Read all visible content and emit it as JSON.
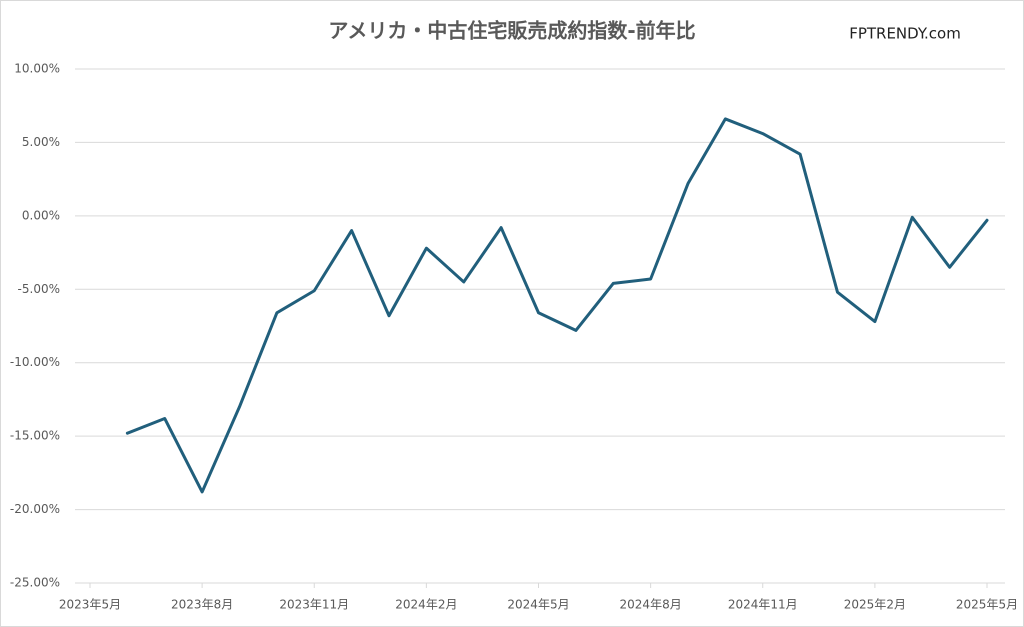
{
  "chart_data": {
    "type": "line",
    "title": "アメリカ・中古住宅販売成約指数-前年比",
    "watermark": "FPTRENDY.com",
    "categories": [
      "2023年5月",
      null,
      null,
      "2023年8月",
      null,
      null,
      "2023年11月",
      null,
      null,
      "2024年2月",
      null,
      null,
      "2024年5月",
      null,
      null,
      "2024年8月",
      null,
      null,
      "2024年11月",
      null,
      null,
      "2025年2月",
      null,
      null,
      "2025年5月"
    ],
    "series": [
      {
        "color": "#215f7c",
        "values": [
          null,
          -14.8,
          -13.8,
          -18.8,
          -13.0,
          -6.6,
          -5.1,
          -1.0,
          -6.8,
          -2.2,
          -4.5,
          -0.8,
          -6.6,
          -7.8,
          -4.6,
          -4.3,
          2.2,
          6.6,
          5.6,
          4.2,
          -5.2,
          -7.2,
          -0.1,
          -3.5,
          -0.3
        ]
      }
    ],
    "ylim": [
      -25,
      10
    ],
    "yticks": [
      {
        "value": -25,
        "label": "-25.00%"
      },
      {
        "value": -20,
        "label": "-20.00%"
      },
      {
        "value": -15,
        "label": "-15.00%"
      },
      {
        "value": -10,
        "label": "-10.00%"
      },
      {
        "value": -5,
        "label": "-5.00%"
      },
      {
        "value": 0,
        "label": "0.00%"
      },
      {
        "value": 5,
        "label": "5.00%"
      },
      {
        "value": 10,
        "label": "10.00%"
      }
    ],
    "grid": true
  }
}
